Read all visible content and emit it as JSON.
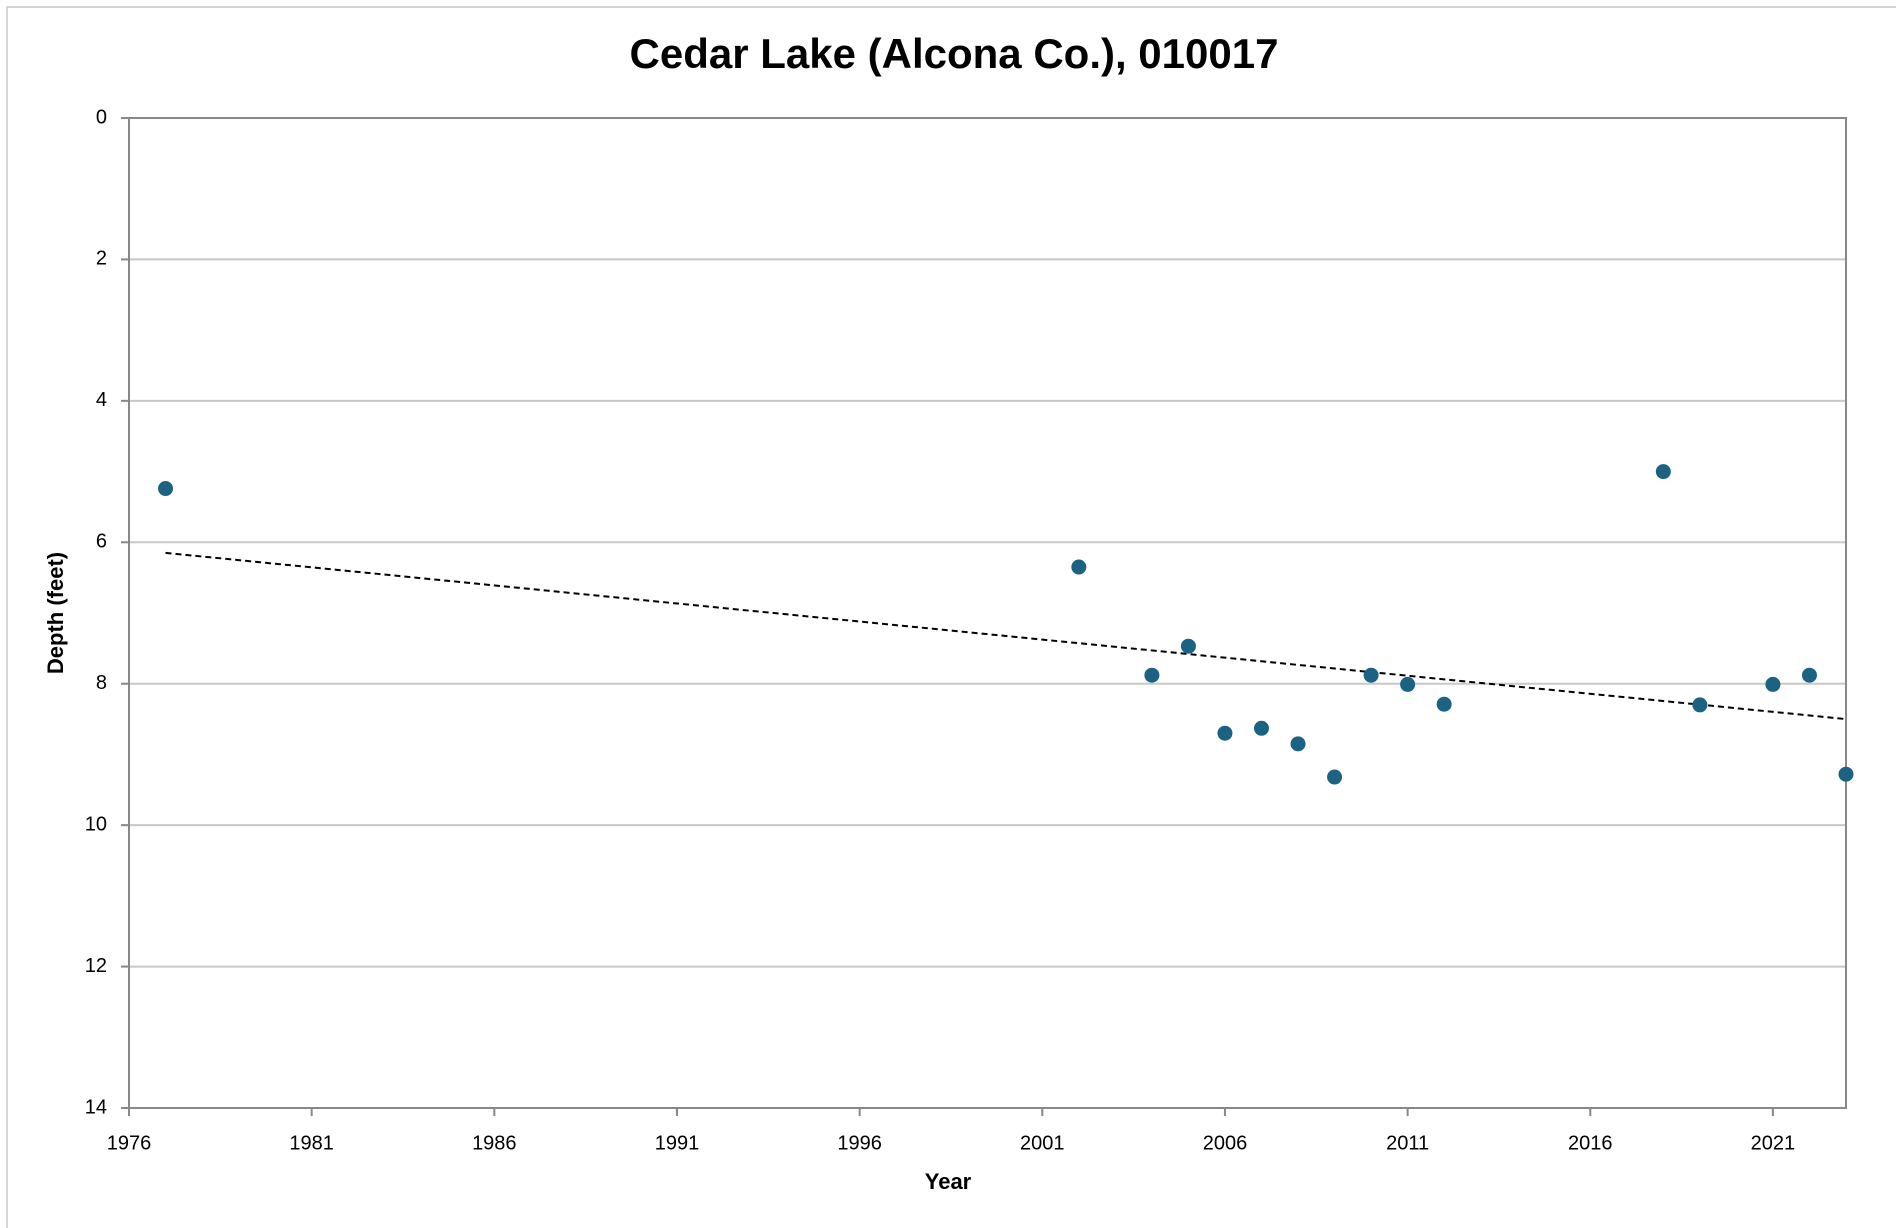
{
  "chart_data": {
    "type": "scatter",
    "title": "Cedar Lake (Alcona Co.), 010017",
    "x_label": "Year",
    "y_label": "Depth (feet)",
    "series": [
      {
        "name": "Depth",
        "color": "#1b6283",
        "x": [
          1977,
          2002,
          2004,
          2005,
          2006,
          2007,
          2008,
          2009,
          2010,
          2011,
          2012,
          2018,
          2019,
          2021,
          2022,
          2023
        ],
        "values": [
          5.24,
          6.35,
          7.88,
          7.47,
          8.7,
          8.63,
          8.85,
          9.32,
          7.88,
          8.01,
          8.29,
          5.0,
          8.3,
          8.01,
          7.88,
          9.28
        ]
      }
    ],
    "trendline": {
      "color": "#000000",
      "x": [
        1977,
        2023
      ],
      "values": [
        6.15,
        8.5
      ]
    },
    "xlim": [
      1976,
      2023
    ],
    "xticks": [
      1976,
      1981,
      1986,
      1991,
      1996,
      2001,
      2006,
      2011,
      2016,
      2021
    ],
    "ylim": [
      0,
      14
    ],
    "yticks": [
      0,
      2,
      4,
      6,
      8,
      10,
      12,
      14
    ],
    "y_inverted": true,
    "grid": true
  }
}
